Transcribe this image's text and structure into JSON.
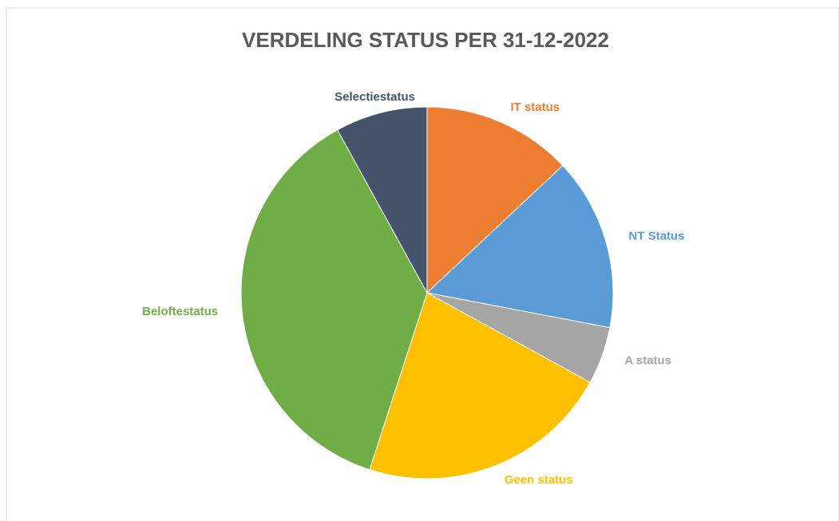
{
  "chart_data": {
    "type": "pie",
    "title": "VERDELING STATUS PER 31-12-2022",
    "categories": [
      "IT status",
      "NT Status",
      "A status",
      "Geen status",
      "Beloftestatus",
      "Selectiestatus"
    ],
    "values": [
      13,
      15,
      5,
      22,
      37,
      8
    ],
    "colors": [
      "#ED7D31",
      "#5B9BD5",
      "#A5A5A5",
      "#FFC000",
      "#70AD47",
      "#44546A"
    ]
  }
}
